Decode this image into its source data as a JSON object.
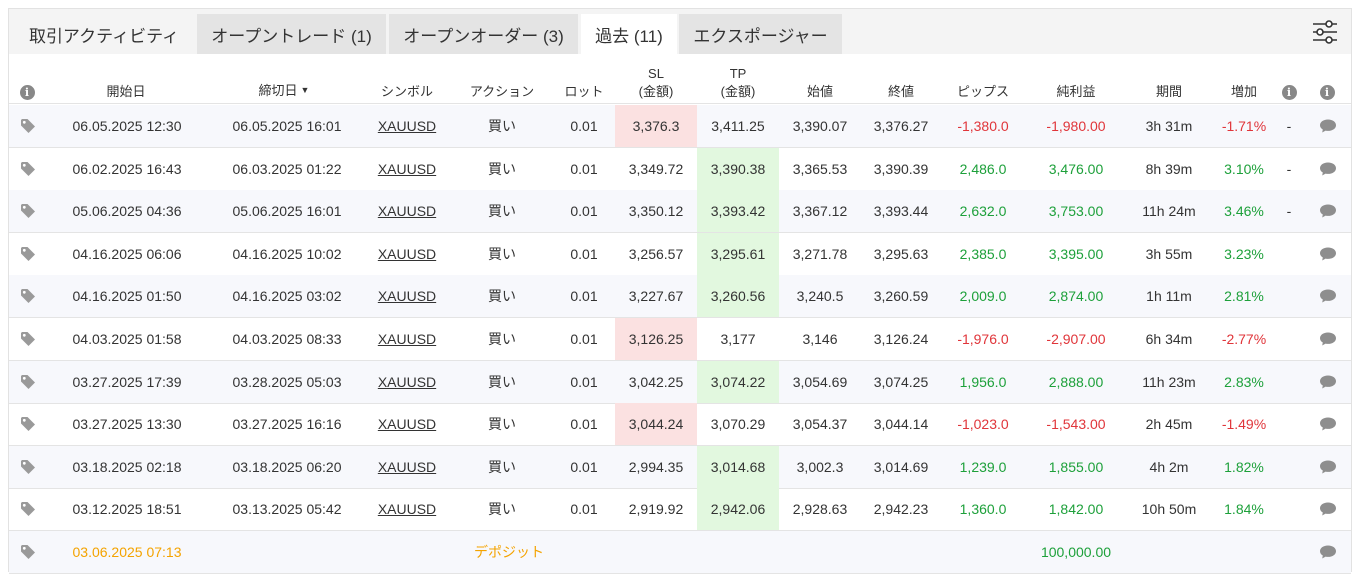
{
  "tabs": [
    {
      "label": "取引アクティビティ"
    },
    {
      "label": "オープントレード (1)"
    },
    {
      "label": "オープンオーダー (3)"
    },
    {
      "label": "過去 (11)"
    },
    {
      "label": "エクスポージャー"
    }
  ],
  "selected_tab_index": 3,
  "table": {
    "headers": {
      "open_date": "開始日",
      "close_date": "締切日",
      "symbol": "シンボル",
      "action": "アクション",
      "lots": "ロット",
      "sl_1": "SL",
      "sl_2": "(金額)",
      "tp_1": "TP",
      "tp_2": "(金額)",
      "open_price": "始値",
      "close_price": "終値",
      "pips": "ピップス",
      "net_profit": "純利益",
      "duration": "期間",
      "gain": "増加"
    },
    "rows": [
      {
        "open": "06.05.2025 12:30",
        "close": "06.05.2025 16:01",
        "symbol": "XAUUSD",
        "action": "買い",
        "lots": "0.01",
        "sl": "3,376.3",
        "tp": "3,411.25",
        "open_price": "3,390.07",
        "close_price": "3,376.27",
        "pips": "-1,380.0",
        "profit": "-1,980.00",
        "duration": "3h 31m",
        "gain": "-1.71%",
        "extra": "-",
        "hit": "sl",
        "positive": false
      },
      {
        "open": "06.02.2025 16:43",
        "close": "06.03.2025 01:22",
        "symbol": "XAUUSD",
        "action": "買い",
        "lots": "0.01",
        "sl": "3,349.72",
        "tp": "3,390.38",
        "open_price": "3,365.53",
        "close_price": "3,390.39",
        "pips": "2,486.0",
        "profit": "3,476.00",
        "duration": "8h 39m",
        "gain": "3.10%",
        "extra": "-",
        "hit": "tp",
        "positive": true
      },
      {
        "open": "05.06.2025 04:36",
        "close": "05.06.2025 16:01",
        "symbol": "XAUUSD",
        "action": "買い",
        "lots": "0.01",
        "sl": "3,350.12",
        "tp": "3,393.42",
        "open_price": "3,367.12",
        "close_price": "3,393.44",
        "pips": "2,632.0",
        "profit": "3,753.00",
        "duration": "11h 24m",
        "gain": "3.46%",
        "extra": "-",
        "hit": "tp",
        "positive": true
      },
      {
        "open": "04.16.2025 06:06",
        "close": "04.16.2025 10:02",
        "symbol": "XAUUSD",
        "action": "買い",
        "lots": "0.01",
        "sl": "3,256.57",
        "tp": "3,295.61",
        "open_price": "3,271.78",
        "close_price": "3,295.63",
        "pips": "2,385.0",
        "profit": "3,395.00",
        "duration": "3h 55m",
        "gain": "3.23%",
        "extra": "",
        "hit": "tp",
        "positive": true
      },
      {
        "open": "04.16.2025 01:50",
        "close": "04.16.2025 03:02",
        "symbol": "XAUUSD",
        "action": "買い",
        "lots": "0.01",
        "sl": "3,227.67",
        "tp": "3,260.56",
        "open_price": "3,240.5",
        "close_price": "3,260.59",
        "pips": "2,009.0",
        "profit": "2,874.00",
        "duration": "1h 11m",
        "gain": "2.81%",
        "extra": "",
        "hit": "tp",
        "positive": true
      },
      {
        "open": "04.03.2025 01:58",
        "close": "04.03.2025 08:33",
        "symbol": "XAUUSD",
        "action": "買い",
        "lots": "0.01",
        "sl": "3,126.25",
        "tp": "3,177",
        "open_price": "3,146",
        "close_price": "3,126.24",
        "pips": "-1,976.0",
        "profit": "-2,907.00",
        "duration": "6h 34m",
        "gain": "-2.77%",
        "extra": "",
        "hit": "sl",
        "positive": false
      },
      {
        "open": "03.27.2025 17:39",
        "close": "03.28.2025 05:03",
        "symbol": "XAUUSD",
        "action": "買い",
        "lots": "0.01",
        "sl": "3,042.25",
        "tp": "3,074.22",
        "open_price": "3,054.69",
        "close_price": "3,074.25",
        "pips": "1,956.0",
        "profit": "2,888.00",
        "duration": "11h 23m",
        "gain": "2.83%",
        "extra": "",
        "hit": "tp",
        "positive": true
      },
      {
        "open": "03.27.2025 13:30",
        "close": "03.27.2025 16:16",
        "symbol": "XAUUSD",
        "action": "買い",
        "lots": "0.01",
        "sl": "3,044.24",
        "tp": "3,070.29",
        "open_price": "3,054.37",
        "close_price": "3,044.14",
        "pips": "-1,023.0",
        "profit": "-1,543.00",
        "duration": "2h 45m",
        "gain": "-1.49%",
        "extra": "",
        "hit": "sl",
        "positive": false
      },
      {
        "open": "03.18.2025 02:18",
        "close": "03.18.2025 06:20",
        "symbol": "XAUUSD",
        "action": "買い",
        "lots": "0.01",
        "sl": "2,994.35",
        "tp": "3,014.68",
        "open_price": "3,002.3",
        "close_price": "3,014.69",
        "pips": "1,239.0",
        "profit": "1,855.00",
        "duration": "4h 2m",
        "gain": "1.82%",
        "extra": "",
        "hit": "tp",
        "positive": true
      },
      {
        "open": "03.12.2025 18:51",
        "close": "03.13.2025 05:42",
        "symbol": "XAUUSD",
        "action": "買い",
        "lots": "0.01",
        "sl": "2,919.92",
        "tp": "2,942.06",
        "open_price": "2,928.63",
        "close_price": "2,942.23",
        "pips": "1,360.0",
        "profit": "1,842.00",
        "duration": "10h 50m",
        "gain": "1.84%",
        "extra": "",
        "hit": "tp",
        "positive": true
      }
    ],
    "deposit": {
      "date": "03.06.2025 07:13",
      "label": "デポジット",
      "amount": "100,000.00"
    }
  },
  "colors": {
    "positive": "#1da03a",
    "negative": "#e0353a",
    "deposit": "#f4a300",
    "sl_highlight": "#fbe1e1",
    "tp_highlight": "#e2f8df"
  },
  "icons": {
    "row_tag": "tag-icon",
    "row_comment": "comment-icon",
    "header_info": "info-icon",
    "settings": "sliders-icon"
  }
}
